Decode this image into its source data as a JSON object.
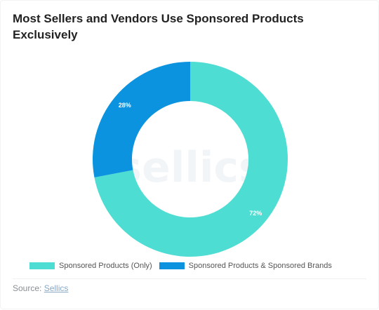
{
  "title": "Most Sellers and Vendors Use Sponsored Products Exclusively",
  "watermark": "sellics",
  "source": {
    "prefix": "Source:",
    "link": "Sellics"
  },
  "chart_data": {
    "type": "pie",
    "donut": true,
    "title": "Most Sellers and Vendors Use Sponsored Products Exclusively",
    "slices": [
      {
        "label": "Sponsored Products (Only)",
        "value": 72,
        "display": "72%",
        "color": "#4dddd3"
      },
      {
        "label": "Sponsored Products & Sponsored Brands",
        "value": 28,
        "display": "28%",
        "color": "#0b93df"
      }
    ],
    "legend_position": "bottom",
    "start_angle_deg": 0,
    "direction": "clockwise"
  }
}
